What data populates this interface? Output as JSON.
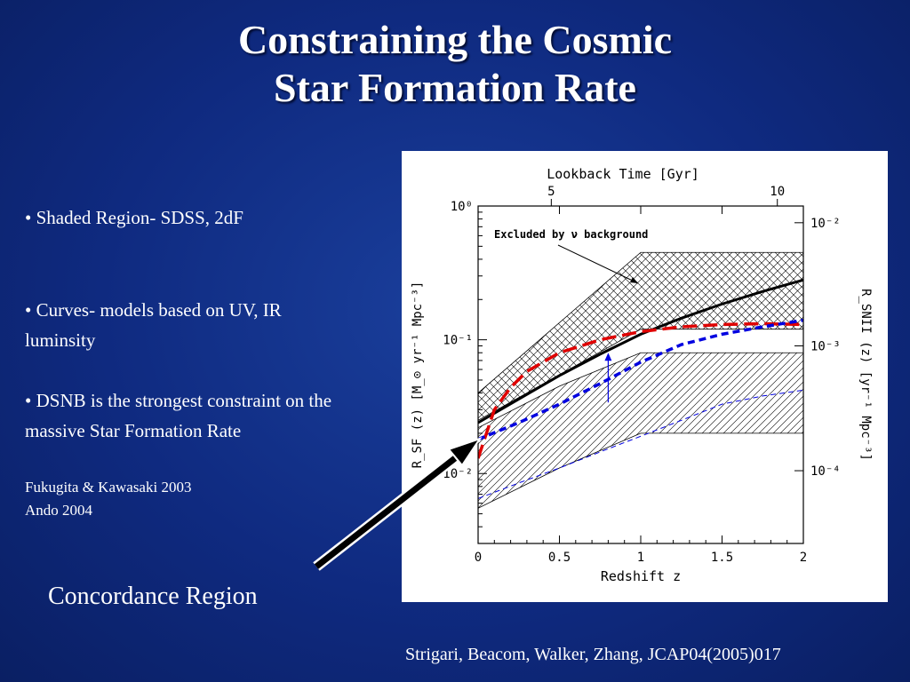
{
  "slide": {
    "title_line1": "Constraining the Cosmic",
    "title_line2": "Star Formation Rate",
    "bullet1": "• Shaded Region- SDSS, 2dF",
    "bullet2": "• Curves- models based on UV, IR luminsity",
    "bullet3": "• DSNB is the strongest constraint on the massive Star Formation Rate",
    "ref1": "Fukugita & Kawasaki 2003",
    "ref2": "Ando 2004",
    "concordance_label": "Concordance Region",
    "citation": "Strigari, Beacom, Walker, Zhang, JCAP04(2005)017"
  },
  "chart_data": {
    "type": "line",
    "xlabel": "Redshift z",
    "top_xlabel": "Lookback Time [Gyr]",
    "ylabel": "R_SF (z) [M_⊙ yr⁻¹ Mpc⁻³]",
    "ylabel_right": "R_SNII (z) [yr⁻¹ Mpc⁻³]",
    "xlim": [
      0,
      2
    ],
    "ylim": [
      0.003,
      1
    ],
    "y_scale": "log",
    "x_ticks": [
      "0",
      "0.5",
      "1",
      "1.5",
      "2"
    ],
    "y_ticks": [
      "10⁰",
      "10⁻¹",
      "10⁻²"
    ],
    "y_tick_values": [
      1,
      0.1,
      0.01
    ],
    "top_ticks": [
      "5",
      "10"
    ],
    "right_ticks": [
      "10⁻²",
      "10⁻³",
      "10⁻⁴"
    ],
    "annotation": "Excluded by ν background",
    "colors": {
      "black_model": "#000000",
      "red_model": "#e00000",
      "blue_model": "#0000e0"
    },
    "excluded_region": {
      "x": [
        0,
        1,
        2
      ],
      "lower": [
        0.025,
        0.12,
        0.12
      ],
      "upper": [
        0.04,
        0.45,
        0.45
      ]
    },
    "observed_region": {
      "x": [
        0,
        0.5,
        1,
        2
      ],
      "lower": [
        0.0055,
        0.011,
        0.02,
        0.02
      ],
      "upper": [
        0.022,
        0.045,
        0.08,
        0.08
      ]
    },
    "series": [
      {
        "x": [
          0,
          0.25,
          0.5,
          0.75,
          1,
          1.25,
          1.5,
          1.75,
          2
        ],
        "y": [
          0.024,
          0.036,
          0.054,
          0.078,
          0.11,
          0.145,
          0.185,
          0.23,
          0.28
        ]
      },
      {
        "x": [
          0,
          0.1,
          0.2,
          0.3,
          0.5,
          0.75,
          1,
          1.25,
          1.5,
          1.75,
          2
        ],
        "y": [
          0.013,
          0.03,
          0.044,
          0.058,
          0.08,
          0.1,
          0.115,
          0.125,
          0.13,
          0.132,
          0.13
        ]
      },
      {
        "x": [
          0,
          0.25,
          0.5,
          0.75,
          1,
          1.25,
          1.5,
          1.75,
          2
        ],
        "y": [
          0.018,
          0.024,
          0.033,
          0.047,
          0.068,
          0.092,
          0.11,
          0.125,
          0.14
        ]
      },
      {
        "x": [
          0,
          0.25,
          0.5,
          0.75,
          1,
          1.25,
          1.5,
          1.75,
          2
        ],
        "y": [
          0.0065,
          0.0085,
          0.011,
          0.0145,
          0.019,
          0.025,
          0.033,
          0.038,
          0.042
        ]
      }
    ],
    "upper_limit_arrow": {
      "x": 0.8,
      "y_from": 0.034,
      "y_to": 0.08
    }
  }
}
